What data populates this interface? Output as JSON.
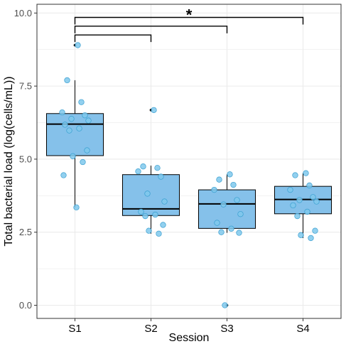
{
  "chart_data": {
    "type": "boxplot",
    "xlabel": "Session",
    "ylabel": "Total bacterial load (log(cells/mL))",
    "categories": [
      "S1",
      "S2",
      "S3",
      "S4"
    ],
    "ylim": [
      -0.45,
      10.3
    ],
    "yticks": [
      0.0,
      2.5,
      5.0,
      7.5,
      10.0
    ],
    "ytick_labels": [
      "0.0",
      "2.5",
      "5.0",
      "7.5",
      "10.0"
    ],
    "grid": true,
    "colors": {
      "box_fill": "#85c1ea",
      "point_fill": "#7fc8ec",
      "point_stroke": "#3a9fd0",
      "line": "#000000",
      "grid": "#ebebeb",
      "panel_border": "#333333"
    },
    "boxes": [
      {
        "category": "S1",
        "q1": 5.12,
        "median": 6.2,
        "q3": 6.56,
        "whisker_low": 3.35,
        "whisker_high": 7.7,
        "outliers": [
          8.9
        ]
      },
      {
        "category": "S2",
        "q1": 3.07,
        "median": 3.3,
        "q3": 4.47,
        "whisker_low": 2.45,
        "whisker_high": 4.78,
        "outliers": [
          6.68
        ]
      },
      {
        "category": "S3",
        "q1": 2.63,
        "median": 3.47,
        "q3": 3.95,
        "whisker_low": 2.48,
        "whisker_high": 4.48,
        "outliers": [
          0.0
        ]
      },
      {
        "category": "S4",
        "q1": 3.13,
        "median": 3.62,
        "q3": 4.07,
        "whisker_low": 2.3,
        "whisker_high": 4.52,
        "outliers": []
      }
    ],
    "points": [
      {
        "category": "S1",
        "values": [
          8.9,
          7.7,
          6.95,
          6.6,
          6.5,
          6.38,
          6.32,
          6.18,
          6.05,
          5.98,
          5.3,
          5.1,
          4.9,
          4.45,
          3.35
        ]
      },
      {
        "category": "S2",
        "values": [
          6.68,
          4.75,
          4.7,
          4.58,
          4.4,
          3.82,
          3.55,
          3.2,
          3.1,
          3.05,
          2.75,
          2.55,
          2.45
        ]
      },
      {
        "category": "S3",
        "values": [
          4.48,
          4.3,
          4.12,
          3.95,
          3.6,
          3.45,
          3.12,
          2.82,
          2.62,
          2.5,
          2.48,
          0.0
        ]
      },
      {
        "category": "S4",
        "values": [
          4.52,
          4.45,
          4.1,
          3.95,
          3.7,
          3.6,
          3.55,
          3.42,
          3.2,
          3.05,
          2.55,
          2.4,
          2.3
        ]
      }
    ],
    "significance": {
      "label": "*",
      "brackets": [
        {
          "from": "S1",
          "to": "S2",
          "y": 9.25
        },
        {
          "from": "S1",
          "to": "S3",
          "y": 9.55
        },
        {
          "from": "S1",
          "to": "S4",
          "y": 9.85
        }
      ]
    }
  }
}
